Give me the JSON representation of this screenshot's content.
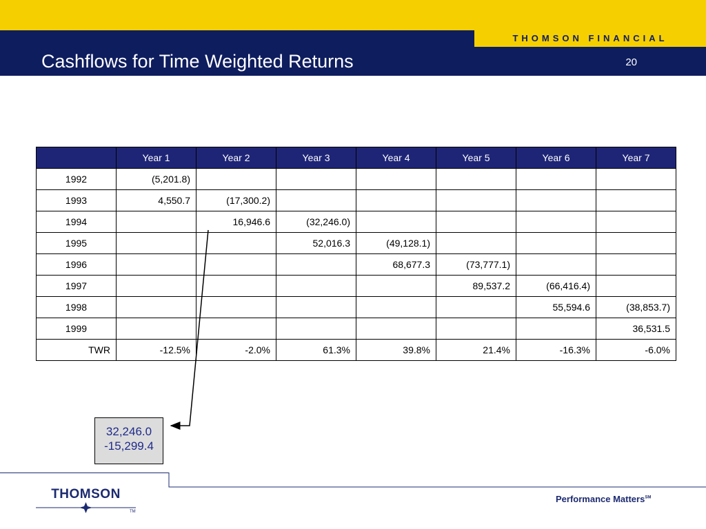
{
  "header": {
    "brand": "THOMSON FINANCIAL",
    "title": "Cashflows for Time Weighted Returns",
    "page_number": "20"
  },
  "table": {
    "columns": [
      "",
      "Year 1",
      "Year 2",
      "Year 3",
      "Year 4",
      "Year 5",
      "Year 6",
      "Year 7"
    ],
    "rows": [
      {
        "label": "1992",
        "cells": [
          "(5,201.8)",
          "",
          "",
          "",
          "",
          "",
          ""
        ]
      },
      {
        "label": "1993",
        "cells": [
          "4,550.7",
          "(17,300.2)",
          "",
          "",
          "",
          "",
          ""
        ]
      },
      {
        "label": "1994",
        "cells": [
          "",
          "16,946.6",
          "(32,246.0)",
          "",
          "",
          "",
          ""
        ]
      },
      {
        "label": "1995",
        "cells": [
          "",
          "",
          "52,016.3",
          "(49,128.1)",
          "",
          "",
          ""
        ]
      },
      {
        "label": "1996",
        "cells": [
          "",
          "",
          "",
          "68,677.3",
          "(73,777.1)",
          "",
          ""
        ]
      },
      {
        "label": "1997",
        "cells": [
          "",
          "",
          "",
          "",
          "89,537.2",
          "(66,416.4)",
          ""
        ]
      },
      {
        "label": "1998",
        "cells": [
          "",
          "",
          "",
          "",
          "",
          "55,594.6",
          "(38,853.7)"
        ]
      },
      {
        "label": "1999",
        "cells": [
          "",
          "",
          "",
          "",
          "",
          "",
          "36,531.5"
        ]
      },
      {
        "label": "TWR",
        "cells": [
          "-12.5%",
          "-2.0%",
          "61.3%",
          "39.8%",
          "21.4%",
          "-16.3%",
          "-6.0%"
        ]
      }
    ]
  },
  "callout": {
    "line1": "32,246.0",
    "line2": "-15,299.4"
  },
  "footer": {
    "logo_text": "THOMSON",
    "logo_tm": "TM",
    "tagline": "Performance Matters",
    "tagline_sm": "SM"
  },
  "colors": {
    "navy": "#0e1d5e",
    "yellow": "#f5cf00",
    "table_header": "#1f2576"
  }
}
